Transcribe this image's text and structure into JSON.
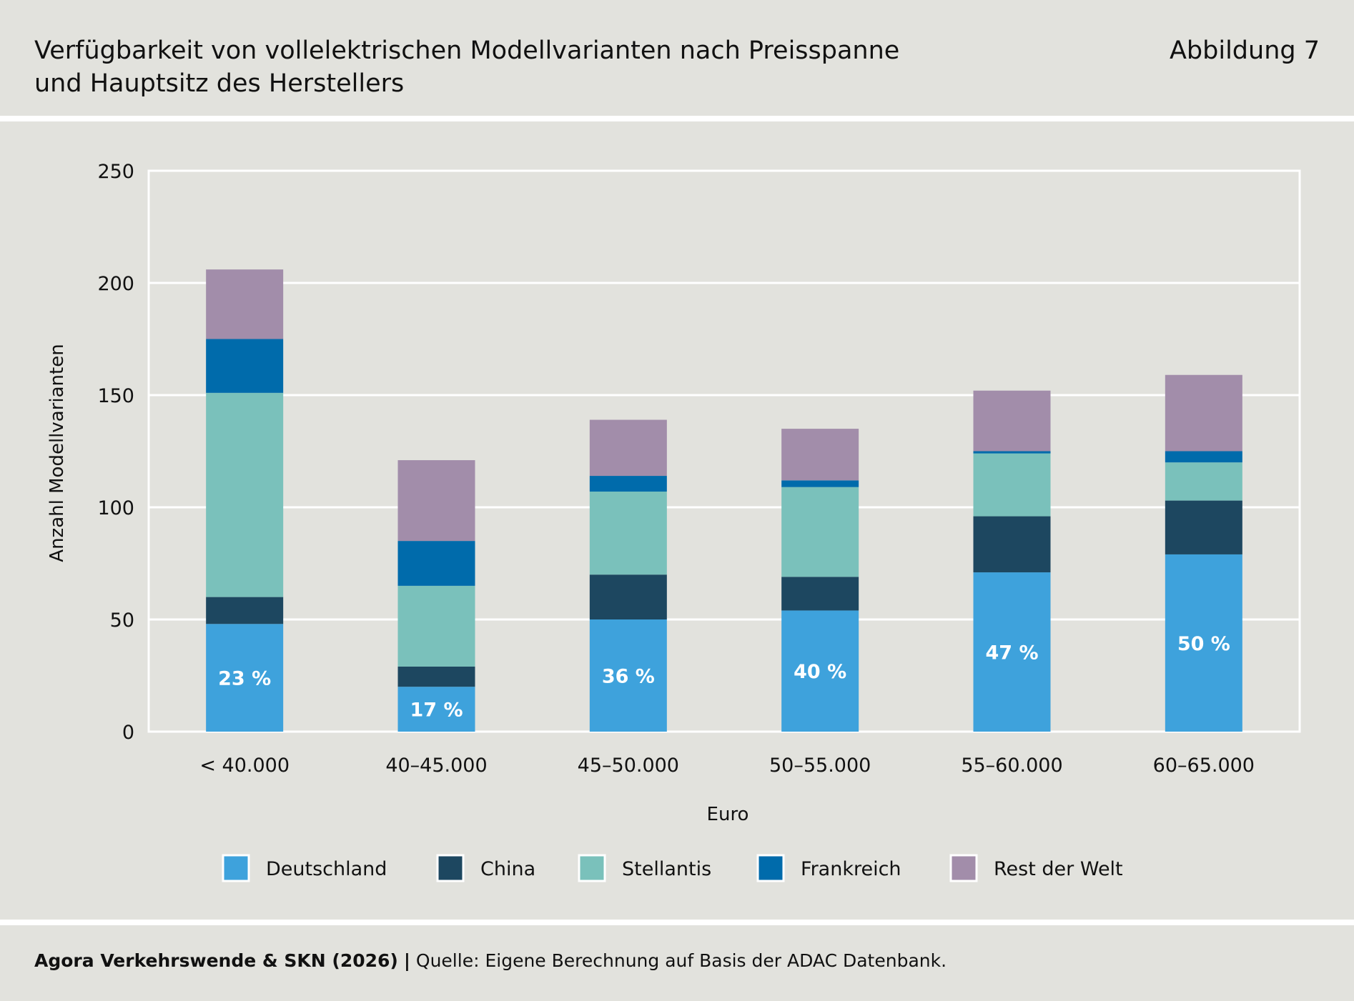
{
  "header": {
    "title_line1": "Verfügbarkeit von vollelektrischen Modellvarianten nach Preisspanne",
    "title_line2": "und Hauptsitz des Herstellers",
    "figure_label": "Abbildung 7"
  },
  "footer": {
    "credit": "Agora Verkehrswende & SKN (2026)",
    "separator": "|",
    "source": "Quelle: Eigene Berechnung auf Basis der ADAC Datenbank."
  },
  "chart_data": {
    "type": "bar",
    "stacked": true,
    "xlabel": "Euro",
    "ylabel": "Anzahl Modellvarianten",
    "ylim": [
      0,
      250
    ],
    "yticks": [
      0,
      50,
      100,
      150,
      200,
      250
    ],
    "grid": true,
    "legend_position": "bottom",
    "categories": [
      "< 40.000",
      "40–45.000",
      "45–50.000",
      "50–55.000",
      "55–60.000",
      "60–65.000"
    ],
    "series": [
      {
        "name": "Deutschland",
        "color": "#3ea2dc",
        "values": [
          48,
          20,
          50,
          54,
          71,
          79
        ]
      },
      {
        "name": "China",
        "color": "#1d4760",
        "values": [
          12,
          9,
          20,
          15,
          25,
          24
        ]
      },
      {
        "name": "Stellantis",
        "color": "#7ac1bb",
        "values": [
          91,
          36,
          37,
          40,
          28,
          17
        ]
      },
      {
        "name": "Frankreich",
        "color": "#006bab",
        "values": [
          24,
          20,
          7,
          3,
          1,
          5
        ]
      },
      {
        "name": "Rest der Welt",
        "color": "#a28daa",
        "values": [
          31,
          36,
          25,
          23,
          27,
          34
        ]
      }
    ],
    "data_labels": [
      "23 %",
      "17 %",
      "36 %",
      "40 %",
      "47 %",
      "50 %"
    ]
  }
}
